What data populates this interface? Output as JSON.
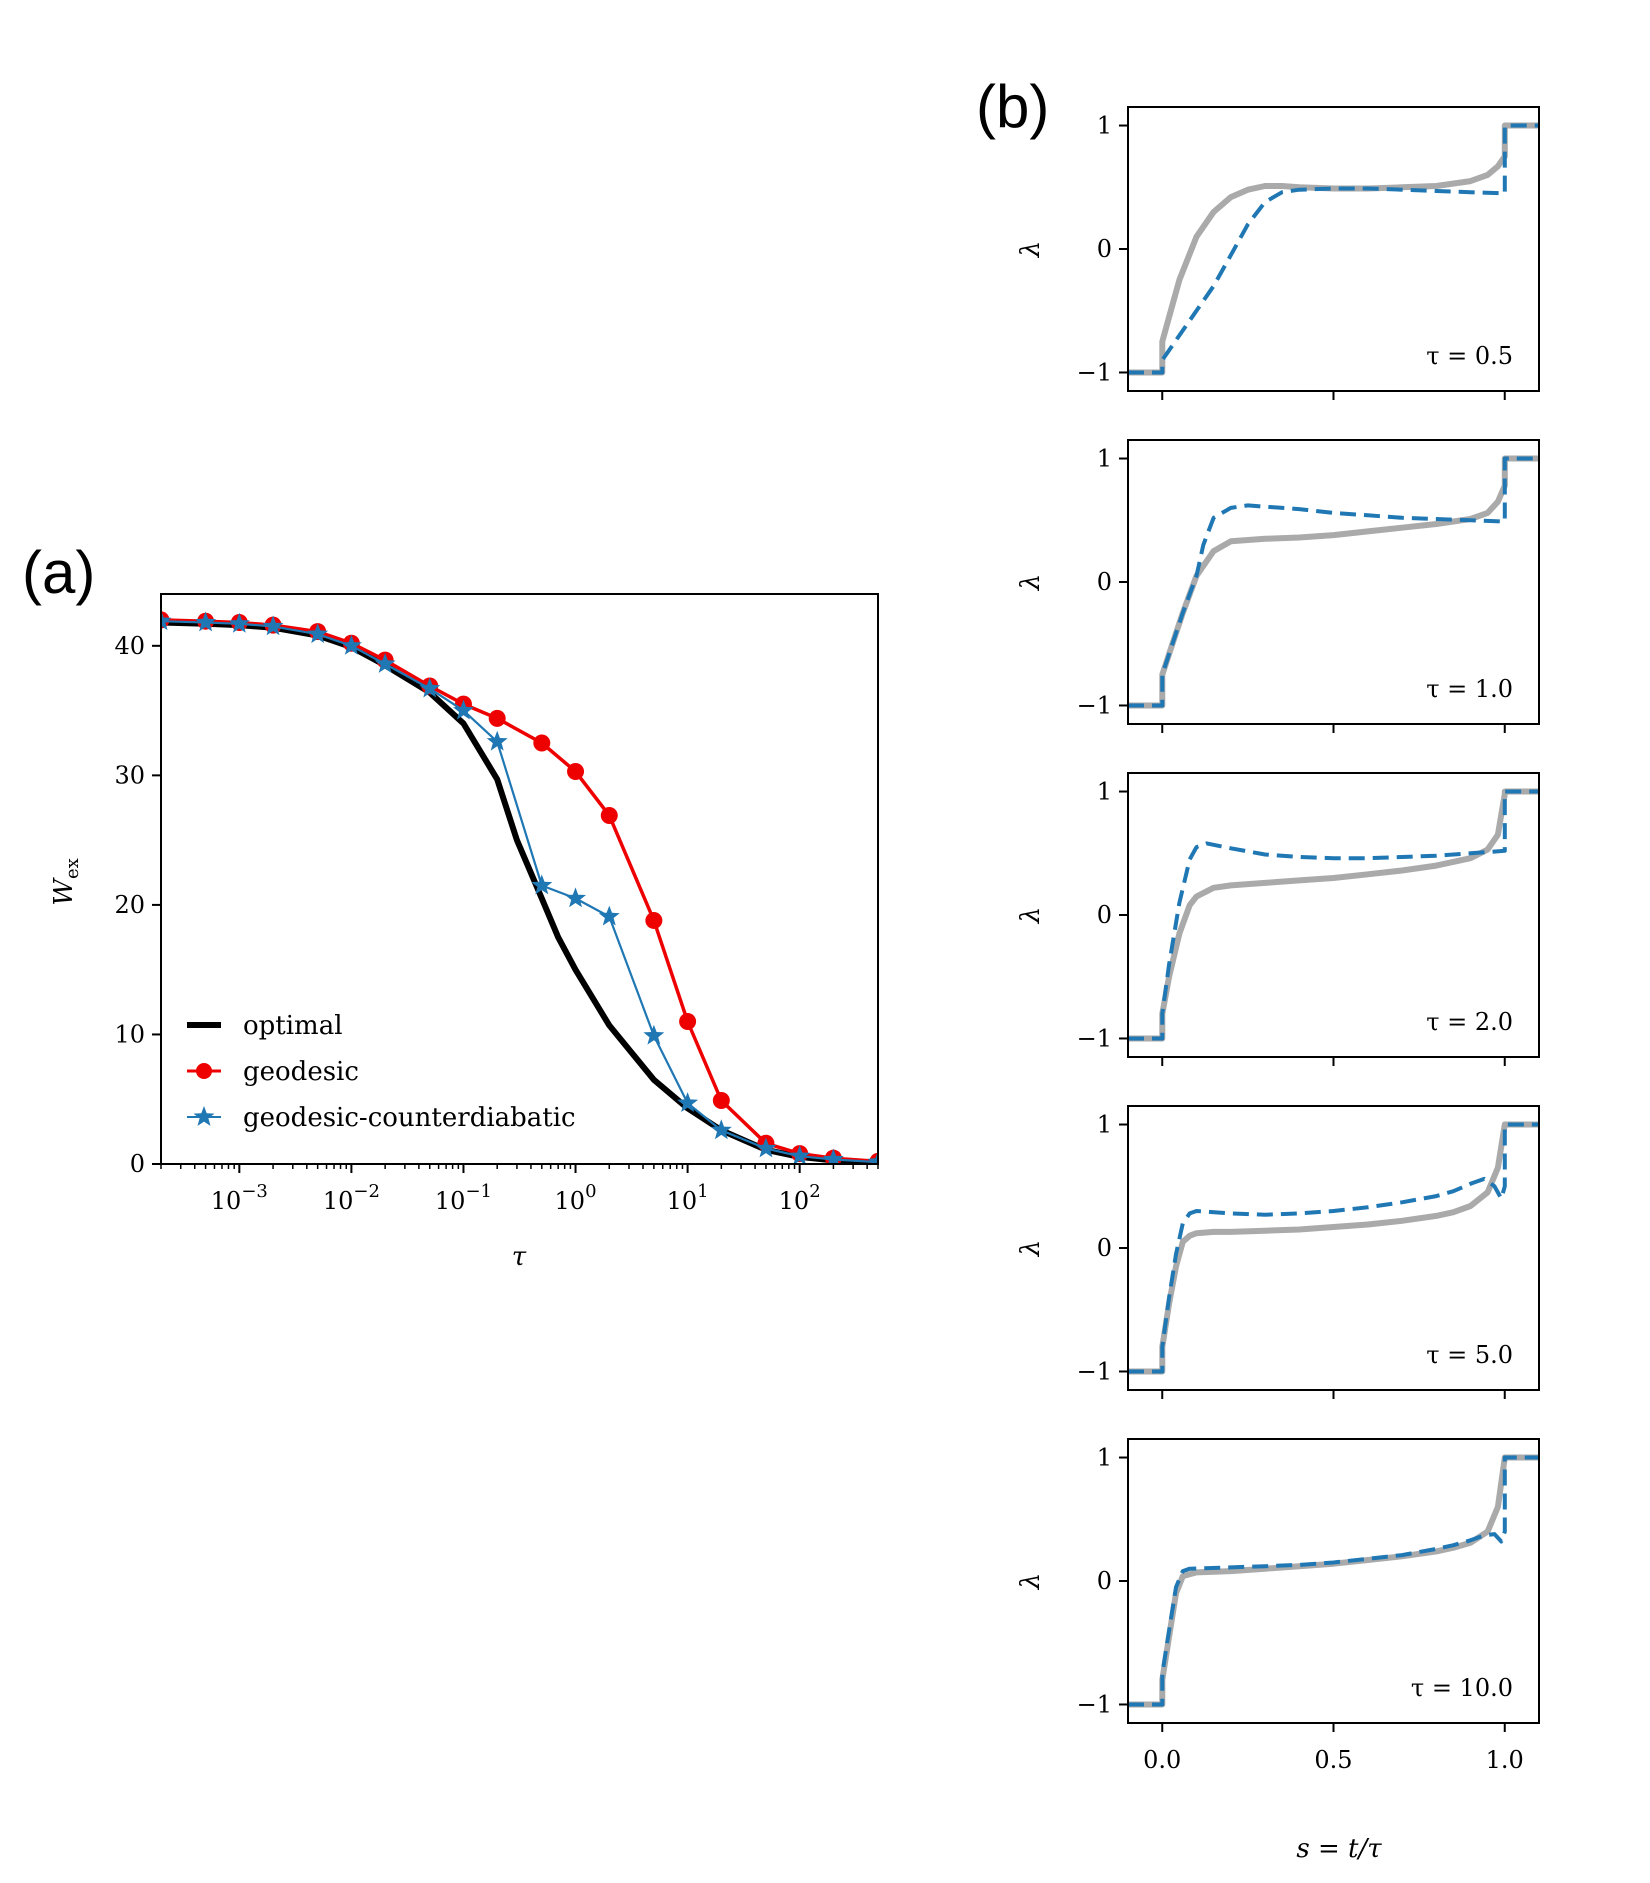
{
  "panels": {
    "a": {
      "label": "(a)"
    },
    "b": {
      "label": "(b)"
    }
  },
  "chart_data": [
    {
      "id": "a",
      "type": "line",
      "x_scale": "log",
      "xlabel": "τ",
      "ylabel": "W_ex",
      "xlim": [
        0.0002,
        500
      ],
      "ylim": [
        0,
        44
      ],
      "x_ticks": [
        {
          "value": 0.001,
          "base": "10",
          "exp": "−3"
        },
        {
          "value": 0.01,
          "base": "10",
          "exp": "−2"
        },
        {
          "value": 0.1,
          "base": "10",
          "exp": "−1"
        },
        {
          "value": 1,
          "base": "10",
          "exp": "0"
        },
        {
          "value": 10,
          "base": "10",
          "exp": "1"
        },
        {
          "value": 100,
          "base": "10",
          "exp": "2"
        }
      ],
      "y_ticks": [
        {
          "value": 0,
          "label": "0"
        },
        {
          "value": 10,
          "label": "10"
        },
        {
          "value": 20,
          "label": "20"
        },
        {
          "value": 30,
          "label": "30"
        },
        {
          "value": 40,
          "label": "40"
        }
      ],
      "legend": {
        "position": "lower-left",
        "entries": [
          "optimal",
          "geodesic",
          "geodesic-counterdiabatic"
        ]
      },
      "series": [
        {
          "name": "optimal",
          "color": "#000000",
          "marker": "none",
          "x": [
            0.0002,
            0.0005,
            0.001,
            0.002,
            0.005,
            0.01,
            0.02,
            0.05,
            0.1,
            0.2,
            0.3,
            0.5,
            0.7,
            1,
            2,
            5,
            10,
            20,
            50,
            100,
            200,
            500
          ],
          "y": [
            41.8,
            41.7,
            41.6,
            41.4,
            40.8,
            39.9,
            38.5,
            36.4,
            34.0,
            29.7,
            25.0,
            20.5,
            17.5,
            15.0,
            10.7,
            6.5,
            4.3,
            2.6,
            1.1,
            0.55,
            0.28,
            0.1
          ]
        },
        {
          "name": "geodesic",
          "color": "#ee0000",
          "marker": "circle",
          "x": [
            0.0002,
            0.0005,
            0.001,
            0.002,
            0.005,
            0.01,
            0.02,
            0.05,
            0.1,
            0.2,
            0.5,
            1,
            2,
            5,
            10,
            20,
            50,
            100,
            200,
            500
          ],
          "y": [
            42.0,
            41.9,
            41.8,
            41.6,
            41.1,
            40.2,
            38.9,
            36.9,
            35.5,
            34.4,
            32.5,
            30.3,
            26.9,
            18.8,
            11.0,
            4.9,
            1.6,
            0.8,
            0.45,
            0.2
          ]
        },
        {
          "name": "geodesic-counterdiabatic",
          "color": "#1f77b4",
          "marker": "star",
          "x": [
            0.0002,
            0.0005,
            0.001,
            0.002,
            0.005,
            0.01,
            0.02,
            0.05,
            0.1,
            0.2,
            0.5,
            1,
            2,
            5,
            10,
            20,
            50,
            100,
            200,
            500
          ],
          "y": [
            41.9,
            41.8,
            41.7,
            41.5,
            40.9,
            40.0,
            38.6,
            36.7,
            35.0,
            32.6,
            21.5,
            20.5,
            19.1,
            9.9,
            4.7,
            2.6,
            1.2,
            0.6,
            0.35,
            0.15
          ]
        }
      ]
    },
    {
      "id": "b",
      "type": "line",
      "xlabel": "s = t/τ",
      "ylabel": "λ",
      "xlim": [
        -0.1,
        1.1
      ],
      "ylim": [
        -1.15,
        1.15
      ],
      "x_ticks": [
        {
          "value": 0,
          "label": "0.0"
        },
        {
          "value": 0.5,
          "label": "0.5"
        },
        {
          "value": 1,
          "label": "1.0"
        }
      ],
      "y_ticks": [
        {
          "value": -1,
          "label": "−1"
        },
        {
          "value": 0,
          "label": "0"
        },
        {
          "value": 1,
          "label": "1"
        }
      ],
      "series_styles": [
        {
          "name": "optimal",
          "color": "#aaaaaa",
          "style": "solid"
        },
        {
          "name": "geodesic-counterdiabatic",
          "color": "#1f77b4",
          "style": "dashed"
        }
      ],
      "subplots": [
        {
          "annotation": "τ = 0.5",
          "optimal": {
            "s": [
              -0.1,
              0,
              0,
              0.02,
              0.05,
              0.1,
              0.15,
              0.2,
              0.25,
              0.3,
              0.35,
              0.4,
              0.5,
              0.6,
              0.7,
              0.8,
              0.9,
              0.95,
              0.98,
              1,
              1,
              1.1
            ],
            "y": [
              -1,
              -1,
              -0.75,
              -0.55,
              -0.25,
              0.1,
              0.3,
              0.42,
              0.48,
              0.51,
              0.51,
              0.5,
              0.49,
              0.49,
              0.5,
              0.51,
              0.55,
              0.6,
              0.67,
              0.75,
              1,
              1
            ]
          },
          "counterdiabatic": {
            "s": [
              -0.1,
              0,
              0,
              0.05,
              0.1,
              0.15,
              0.2,
              0.25,
              0.3,
              0.35,
              0.4,
              0.5,
              0.6,
              0.7,
              0.8,
              0.9,
              1,
              1,
              1.1
            ],
            "y": [
              -1,
              -1,
              -0.9,
              -0.7,
              -0.5,
              -0.3,
              -0.05,
              0.2,
              0.38,
              0.46,
              0.48,
              0.49,
              0.49,
              0.48,
              0.47,
              0.46,
              0.45,
              1,
              1
            ]
          }
        },
        {
          "annotation": "τ = 1.0",
          "optimal": {
            "s": [
              -0.1,
              0,
              0,
              0.03,
              0.06,
              0.1,
              0.15,
              0.2,
              0.3,
              0.4,
              0.5,
              0.6,
              0.7,
              0.8,
              0.9,
              0.95,
              0.98,
              1,
              1,
              1.1
            ],
            "y": [
              -1,
              -1,
              -0.75,
              -0.5,
              -0.25,
              0.05,
              0.25,
              0.33,
              0.35,
              0.36,
              0.38,
              0.41,
              0.44,
              0.47,
              0.51,
              0.56,
              0.65,
              0.78,
              1,
              1
            ]
          },
          "counterdiabatic": {
            "s": [
              -0.1,
              0,
              0,
              0.03,
              0.06,
              0.1,
              0.12,
              0.15,
              0.2,
              0.25,
              0.3,
              0.4,
              0.5,
              0.6,
              0.7,
              0.8,
              0.9,
              1,
              1,
              1.1
            ],
            "y": [
              -1,
              -1,
              -0.75,
              -0.5,
              -0.25,
              0.05,
              0.3,
              0.52,
              0.6,
              0.62,
              0.61,
              0.59,
              0.56,
              0.54,
              0.52,
              0.51,
              0.5,
              0.49,
              1,
              1
            ]
          }
        },
        {
          "annotation": "τ = 2.0",
          "optimal": {
            "s": [
              -0.1,
              0,
              0,
              0.02,
              0.05,
              0.08,
              0.1,
              0.15,
              0.2,
              0.3,
              0.4,
              0.5,
              0.6,
              0.7,
              0.8,
              0.9,
              0.95,
              0.98,
              1,
              1,
              1.1
            ],
            "y": [
              -1,
              -1,
              -0.8,
              -0.5,
              -0.15,
              0.08,
              0.15,
              0.22,
              0.24,
              0.26,
              0.28,
              0.3,
              0.33,
              0.36,
              0.4,
              0.46,
              0.53,
              0.65,
              0.98,
              1,
              1
            ]
          },
          "counterdiabatic": {
            "s": [
              -0.1,
              0,
              0,
              0.02,
              0.05,
              0.08,
              0.1,
              0.13,
              0.2,
              0.3,
              0.4,
              0.5,
              0.6,
              0.7,
              0.8,
              0.9,
              1,
              1,
              1.1
            ],
            "y": [
              -1,
              -1,
              -0.8,
              -0.4,
              0.1,
              0.45,
              0.55,
              0.58,
              0.54,
              0.49,
              0.47,
              0.46,
              0.46,
              0.47,
              0.48,
              0.5,
              0.52,
              1,
              1
            ]
          }
        },
        {
          "annotation": "τ = 5.0",
          "optimal": {
            "s": [
              -0.1,
              0,
              0,
              0.02,
              0.04,
              0.06,
              0.08,
              0.1,
              0.15,
              0.2,
              0.3,
              0.4,
              0.5,
              0.6,
              0.7,
              0.8,
              0.85,
              0.9,
              0.95,
              0.98,
              1,
              1.1
            ],
            "y": [
              -1,
              -1,
              -0.8,
              -0.45,
              -0.15,
              0.05,
              0.1,
              0.12,
              0.13,
              0.13,
              0.14,
              0.15,
              0.17,
              0.19,
              0.22,
              0.26,
              0.29,
              0.34,
              0.45,
              0.65,
              1,
              1
            ]
          },
          "counterdiabatic": {
            "s": [
              -0.1,
              0,
              0,
              0.02,
              0.04,
              0.06,
              0.08,
              0.1,
              0.2,
              0.3,
              0.4,
              0.5,
              0.6,
              0.7,
              0.8,
              0.85,
              0.9,
              0.94,
              0.97,
              0.99,
              1,
              1,
              1.1
            ],
            "y": [
              -1,
              -1,
              -0.8,
              -0.4,
              -0.05,
              0.2,
              0.28,
              0.3,
              0.28,
              0.27,
              0.28,
              0.3,
              0.33,
              0.37,
              0.42,
              0.46,
              0.52,
              0.56,
              0.5,
              0.4,
              0.5,
              1,
              1
            ]
          }
        },
        {
          "annotation": "τ = 10.0",
          "optimal": {
            "s": [
              -0.1,
              0,
              0,
              0.02,
              0.04,
              0.06,
              0.1,
              0.2,
              0.3,
              0.4,
              0.5,
              0.6,
              0.7,
              0.8,
              0.85,
              0.9,
              0.95,
              0.98,
              1,
              1.1
            ],
            "y": [
              -1,
              -1,
              -0.8,
              -0.45,
              -0.1,
              0.04,
              0.07,
              0.08,
              0.1,
              0.12,
              0.14,
              0.17,
              0.2,
              0.24,
              0.27,
              0.31,
              0.4,
              0.6,
              1,
              1
            ]
          },
          "counterdiabatic": {
            "s": [
              -0.1,
              0,
              0,
              0.02,
              0.04,
              0.06,
              0.08,
              0.2,
              0.3,
              0.4,
              0.5,
              0.6,
              0.7,
              0.8,
              0.85,
              0.9,
              0.94,
              0.97,
              0.99,
              1,
              1,
              1.1
            ],
            "y": [
              -1,
              -1,
              -0.75,
              -0.4,
              -0.05,
              0.08,
              0.1,
              0.11,
              0.12,
              0.13,
              0.15,
              0.18,
              0.21,
              0.26,
              0.29,
              0.33,
              0.37,
              0.38,
              0.32,
              0.4,
              1,
              1
            ]
          }
        }
      ]
    }
  ]
}
